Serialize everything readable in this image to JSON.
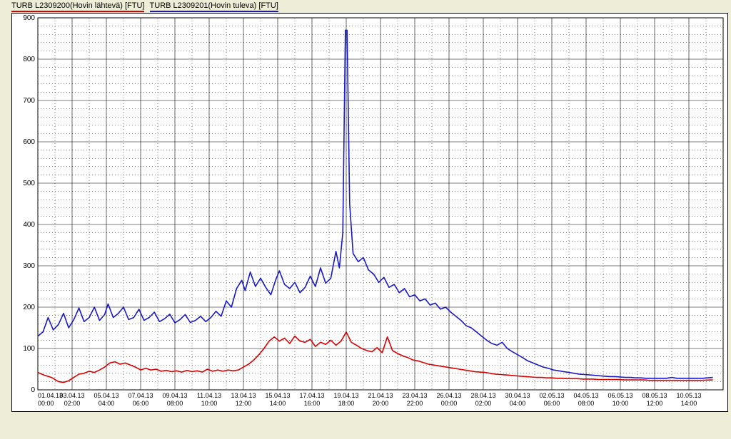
{
  "legend": {
    "items": [
      {
        "label": "TURB L2309200(Hovin lähtevä) [FTU]",
        "color": "#d90000"
      },
      {
        "label": "TURB L2309201(Hovin tuleva) [FTU]",
        "color": "#1818c8"
      }
    ]
  },
  "chart": {
    "type": "line",
    "background_color": "#ffffff",
    "page_color": "#eeeed8",
    "grid_minor_color": "#000000",
    "grid_major_color": "#000000",
    "text_color": "#000000",
    "axis_fontsize_pt": 9,
    "ylim": [
      0,
      900
    ],
    "ytick_step": 100,
    "xlim_index": [
      0,
      40
    ],
    "x_major_step": 2,
    "x_minor_step": 1,
    "x_major_ticks": [
      {
        "i": 0,
        "line1": "01.04.13",
        "line2": "00:00"
      },
      {
        "i": 2,
        "line1": "03.04.13",
        "line2": "02:00"
      },
      {
        "i": 4,
        "line1": "05.04.13",
        "line2": "04:00"
      },
      {
        "i": 6,
        "line1": "07.04.13",
        "line2": "06:00"
      },
      {
        "i": 8,
        "line1": "09.04.13",
        "line2": "08:00"
      },
      {
        "i": 10,
        "line1": "11.04.13",
        "line2": "10:00"
      },
      {
        "i": 12,
        "line1": "13.04.13",
        "line2": "12:00"
      },
      {
        "i": 14,
        "line1": "15.04.13",
        "line2": "14:00"
      },
      {
        "i": 16,
        "line1": "17.04.13",
        "line2": "16:00"
      },
      {
        "i": 18,
        "line1": "19.04.13",
        "line2": "18:00"
      },
      {
        "i": 20,
        "line1": "21.04.13",
        "line2": "20:00"
      },
      {
        "i": 22,
        "line1": "23.04.13",
        "line2": "22:00"
      },
      {
        "i": 24,
        "line1": "26.04.13",
        "line2": "00:00"
      },
      {
        "i": 26,
        "line1": "28.04.13",
        "line2": "02:00"
      },
      {
        "i": 28,
        "line1": "30.04.13",
        "line2": "04:00"
      },
      {
        "i": 30,
        "line1": "02.05.13",
        "line2": "06:00"
      },
      {
        "i": 32,
        "line1": "04.05.13",
        "line2": "08:00"
      },
      {
        "i": 34,
        "line1": "06.05.13",
        "line2": "10:00"
      },
      {
        "i": 36,
        "line1": "08.05.13",
        "line2": "12:00"
      },
      {
        "i": 38,
        "line1": "10.05.13",
        "line2": "14:00"
      }
    ],
    "series": [
      {
        "name": "Hovin tuleva",
        "color": "#1818c8",
        "line_width": 1.6,
        "points": [
          [
            0,
            130
          ],
          [
            0.3,
            140
          ],
          [
            0.6,
            175
          ],
          [
            0.9,
            145
          ],
          [
            1.2,
            158
          ],
          [
            1.5,
            185
          ],
          [
            1.8,
            150
          ],
          [
            2.1,
            170
          ],
          [
            2.4,
            198
          ],
          [
            2.7,
            165
          ],
          [
            3.0,
            175
          ],
          [
            3.3,
            200
          ],
          [
            3.6,
            168
          ],
          [
            3.9,
            182
          ],
          [
            4.1,
            208
          ],
          [
            4.4,
            175
          ],
          [
            4.7,
            185
          ],
          [
            5.0,
            200
          ],
          [
            5.3,
            170
          ],
          [
            5.6,
            175
          ],
          [
            5.9,
            195
          ],
          [
            6.2,
            168
          ],
          [
            6.5,
            175
          ],
          [
            6.8,
            188
          ],
          [
            7.1,
            165
          ],
          [
            7.4,
            172
          ],
          [
            7.7,
            183
          ],
          [
            8.0,
            162
          ],
          [
            8.3,
            170
          ],
          [
            8.6,
            182
          ],
          [
            8.9,
            163
          ],
          [
            9.2,
            168
          ],
          [
            9.5,
            178
          ],
          [
            9.8,
            165
          ],
          [
            10.1,
            175
          ],
          [
            10.4,
            190
          ],
          [
            10.7,
            178
          ],
          [
            11.0,
            215
          ],
          [
            11.3,
            200
          ],
          [
            11.6,
            245
          ],
          [
            11.9,
            265
          ],
          [
            12.1,
            240
          ],
          [
            12.4,
            285
          ],
          [
            12.7,
            250
          ],
          [
            13.0,
            270
          ],
          [
            13.3,
            248
          ],
          [
            13.6,
            230
          ],
          [
            13.9,
            268
          ],
          [
            14.1,
            288
          ],
          [
            14.4,
            255
          ],
          [
            14.7,
            245
          ],
          [
            15.0,
            260
          ],
          [
            15.3,
            235
          ],
          [
            15.6,
            248
          ],
          [
            15.9,
            275
          ],
          [
            16.2,
            250
          ],
          [
            16.5,
            295
          ],
          [
            16.8,
            258
          ],
          [
            17.1,
            270
          ],
          [
            17.4,
            335
          ],
          [
            17.6,
            295
          ],
          [
            17.8,
            380
          ],
          [
            17.95,
            870
          ],
          [
            18.05,
            870
          ],
          [
            18.2,
            450
          ],
          [
            18.4,
            330
          ],
          [
            18.7,
            310
          ],
          [
            19.0,
            320
          ],
          [
            19.3,
            290
          ],
          [
            19.6,
            280
          ],
          [
            19.9,
            260
          ],
          [
            20.2,
            272
          ],
          [
            20.5,
            248
          ],
          [
            20.8,
            255
          ],
          [
            21.1,
            235
          ],
          [
            21.4,
            245
          ],
          [
            21.7,
            225
          ],
          [
            22.0,
            230
          ],
          [
            22.3,
            215
          ],
          [
            22.6,
            220
          ],
          [
            22.9,
            205
          ],
          [
            23.2,
            210
          ],
          [
            23.5,
            195
          ],
          [
            23.8,
            200
          ],
          [
            24.1,
            188
          ],
          [
            24.4,
            178
          ],
          [
            24.7,
            168
          ],
          [
            25.0,
            155
          ],
          [
            25.3,
            150
          ],
          [
            25.6,
            140
          ],
          [
            25.9,
            130
          ],
          [
            26.2,
            120
          ],
          [
            26.5,
            112
          ],
          [
            26.8,
            108
          ],
          [
            27.1,
            115
          ],
          [
            27.4,
            100
          ],
          [
            27.7,
            92
          ],
          [
            28.0,
            85
          ],
          [
            28.3,
            78
          ],
          [
            28.6,
            70
          ],
          [
            28.9,
            65
          ],
          [
            29.2,
            60
          ],
          [
            29.5,
            55
          ],
          [
            29.8,
            52
          ],
          [
            30.1,
            48
          ],
          [
            30.4,
            46
          ],
          [
            30.7,
            44
          ],
          [
            31.0,
            42
          ],
          [
            31.3,
            40
          ],
          [
            31.6,
            38
          ],
          [
            31.9,
            37
          ],
          [
            32.2,
            36
          ],
          [
            32.5,
            35
          ],
          [
            32.8,
            34
          ],
          [
            33.1,
            33
          ],
          [
            33.4,
            32
          ],
          [
            33.7,
            32
          ],
          [
            34.0,
            31
          ],
          [
            34.3,
            30
          ],
          [
            34.6,
            30
          ],
          [
            34.9,
            29
          ],
          [
            35.2,
            29
          ],
          [
            35.5,
            28
          ],
          [
            35.8,
            28
          ],
          [
            36.1,
            28
          ],
          [
            36.4,
            28
          ],
          [
            36.7,
            28
          ],
          [
            37.0,
            30
          ],
          [
            37.3,
            28
          ],
          [
            37.6,
            28
          ],
          [
            37.9,
            28
          ],
          [
            38.2,
            28
          ],
          [
            38.5,
            28
          ],
          [
            38.8,
            28
          ],
          [
            39.4,
            30
          ]
        ]
      },
      {
        "name": "Hovin lähtevä",
        "color": "#d90000",
        "line_width": 1.6,
        "points": [
          [
            0,
            42
          ],
          [
            0.4,
            35
          ],
          [
            0.8,
            30
          ],
          [
            1.2,
            20
          ],
          [
            1.5,
            18
          ],
          [
            1.8,
            22
          ],
          [
            2.1,
            30
          ],
          [
            2.4,
            38
          ],
          [
            2.7,
            40
          ],
          [
            3.0,
            45
          ],
          [
            3.3,
            42
          ],
          [
            3.6,
            48
          ],
          [
            3.9,
            55
          ],
          [
            4.2,
            65
          ],
          [
            4.5,
            68
          ],
          [
            4.8,
            62
          ],
          [
            5.1,
            65
          ],
          [
            5.4,
            60
          ],
          [
            5.7,
            55
          ],
          [
            6.0,
            48
          ],
          [
            6.3,
            52
          ],
          [
            6.6,
            48
          ],
          [
            6.9,
            50
          ],
          [
            7.2,
            45
          ],
          [
            7.5,
            47
          ],
          [
            7.8,
            44
          ],
          [
            8.1,
            46
          ],
          [
            8.4,
            43
          ],
          [
            8.7,
            47
          ],
          [
            9.0,
            44
          ],
          [
            9.3,
            46
          ],
          [
            9.6,
            43
          ],
          [
            9.9,
            50
          ],
          [
            10.2,
            45
          ],
          [
            10.5,
            48
          ],
          [
            10.8,
            45
          ],
          [
            11.1,
            48
          ],
          [
            11.4,
            46
          ],
          [
            11.7,
            48
          ],
          [
            12.0,
            55
          ],
          [
            12.3,
            62
          ],
          [
            12.6,
            72
          ],
          [
            12.9,
            85
          ],
          [
            13.2,
            100
          ],
          [
            13.5,
            118
          ],
          [
            13.8,
            128
          ],
          [
            14.1,
            118
          ],
          [
            14.4,
            125
          ],
          [
            14.7,
            112
          ],
          [
            15.0,
            130
          ],
          [
            15.3,
            118
          ],
          [
            15.6,
            115
          ],
          [
            15.9,
            122
          ],
          [
            16.2,
            105
          ],
          [
            16.5,
            115
          ],
          [
            16.8,
            110
          ],
          [
            17.1,
            120
          ],
          [
            17.4,
            108
          ],
          [
            17.7,
            118
          ],
          [
            18.0,
            140
          ],
          [
            18.3,
            115
          ],
          [
            18.6,
            108
          ],
          [
            18.9,
            100
          ],
          [
            19.2,
            95
          ],
          [
            19.5,
            92
          ],
          [
            19.8,
            102
          ],
          [
            20.1,
            90
          ],
          [
            20.4,
            128
          ],
          [
            20.7,
            95
          ],
          [
            21.0,
            88
          ],
          [
            21.3,
            82
          ],
          [
            21.6,
            78
          ],
          [
            21.9,
            72
          ],
          [
            22.2,
            70
          ],
          [
            22.5,
            66
          ],
          [
            22.8,
            62
          ],
          [
            23.1,
            60
          ],
          [
            23.4,
            58
          ],
          [
            23.7,
            56
          ],
          [
            24.0,
            54
          ],
          [
            24.3,
            52
          ],
          [
            24.6,
            50
          ],
          [
            24.9,
            48
          ],
          [
            25.2,
            46
          ],
          [
            25.5,
            44
          ],
          [
            25.8,
            43
          ],
          [
            26.1,
            42
          ],
          [
            26.4,
            40
          ],
          [
            26.7,
            38
          ],
          [
            27.0,
            37
          ],
          [
            27.3,
            36
          ],
          [
            27.6,
            35
          ],
          [
            27.9,
            34
          ],
          [
            28.2,
            33
          ],
          [
            28.5,
            32
          ],
          [
            28.8,
            31
          ],
          [
            29.1,
            30
          ],
          [
            29.4,
            30
          ],
          [
            29.7,
            29
          ],
          [
            30.0,
            29
          ],
          [
            30.3,
            28
          ],
          [
            30.6,
            28
          ],
          [
            30.9,
            27
          ],
          [
            31.2,
            27
          ],
          [
            31.5,
            27
          ],
          [
            31.8,
            26
          ],
          [
            32.1,
            26
          ],
          [
            32.4,
            26
          ],
          [
            32.7,
            25
          ],
          [
            33.0,
            25
          ],
          [
            33.3,
            25
          ],
          [
            33.6,
            25
          ],
          [
            33.9,
            25
          ],
          [
            34.2,
            24
          ],
          [
            34.5,
            24
          ],
          [
            34.8,
            24
          ],
          [
            35.1,
            24
          ],
          [
            35.4,
            24
          ],
          [
            35.7,
            23
          ],
          [
            36.0,
            23
          ],
          [
            36.3,
            23
          ],
          [
            36.6,
            23
          ],
          [
            36.9,
            23
          ],
          [
            37.2,
            23
          ],
          [
            37.5,
            23
          ],
          [
            37.8,
            23
          ],
          [
            38.1,
            23
          ],
          [
            38.4,
            23
          ],
          [
            38.7,
            23
          ],
          [
            39.4,
            24
          ]
        ]
      }
    ]
  }
}
